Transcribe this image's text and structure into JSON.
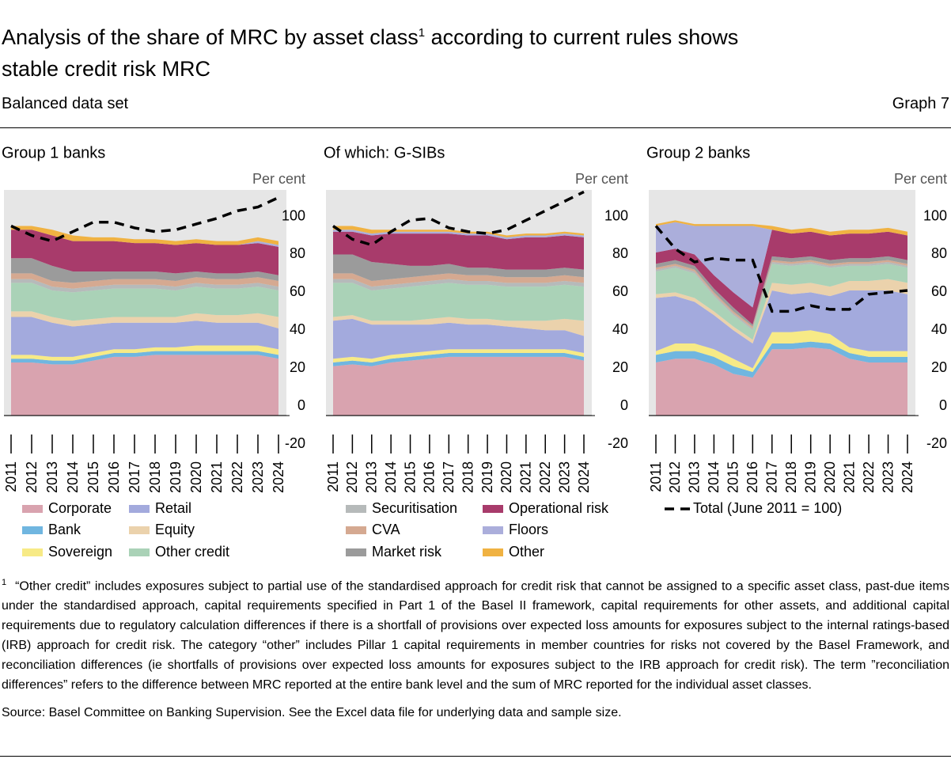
{
  "header": {
    "title": "Analysis of the share of MRC by asset class",
    "title_note": "1",
    "title_end": "according to current rules shows stable credit risk MRC",
    "subtitle": "Balanced data set",
    "graph": "Graph 7"
  },
  "notes": {
    "footnote_mark": "1",
    "footnote": "“Other credit” includes exposures subject to partial use of the standardised approach for credit risk that cannot be assigned to a specific asset class, past-due items under the standardised approach, capital requirements specified in Part 1 of the Basel II framework, capital requirements for other assets, and additional capital requirements due to regulatory calculation differences if there is a shortfall of provisions over expected loss amounts for exposures subject to the internal ratings-based (IRB) approach for credit risk. The category “other” includes Pillar 1 capital requirements in member countries for risks not covered by the Basel Framework, and reconciliation differences (ie shortfalls of provisions over expected loss amounts for exposures subject to the IRB approach for credit risk). The term ”reconciliation differences” refers to the difference between MRC reported at the entire bank level and the sum of MRC reported for the individual asset classes.",
    "source": "Source: Basel Committee on Banking Supervision. See the Excel data file for underlying data and sample size."
  },
  "chart_data": [
    {
      "type": "stacked_area",
      "title": "Group 1 banks",
      "y_unit": "Per cent",
      "categories": [
        "2011",
        "2012",
        "2013",
        "2014",
        "2015",
        "2016",
        "2017",
        "2018",
        "2019",
        "2020",
        "2021",
        "2022",
        "2023",
        "2024"
      ],
      "ylim": [
        -20,
        119
      ],
      "yticks": [
        -20,
        0,
        20,
        40,
        60,
        80,
        100
      ],
      "series": [
        {
          "name": "Corporate",
          "color": "#d9a3af",
          "values": [
            28,
            28,
            27,
            27,
            29,
            31,
            31,
            32,
            32,
            32,
            32,
            32,
            32,
            30
          ]
        },
        {
          "name": "Bank",
          "color": "#70b6e0",
          "values": [
            2,
            2,
            2,
            2,
            2,
            2,
            2,
            2,
            2,
            2,
            2,
            2,
            2,
            2
          ]
        },
        {
          "name": "Sovereign",
          "color": "#f7ea86",
          "values": [
            2,
            2,
            2,
            2,
            2,
            2,
            2,
            2,
            2,
            3,
            3,
            3,
            3,
            3
          ]
        },
        {
          "name": "Retail",
          "color": "#a3aadd",
          "values": [
            20,
            20,
            18,
            16,
            15,
            14,
            14,
            13,
            13,
            13,
            12,
            12,
            12,
            11
          ]
        },
        {
          "name": "Equity",
          "color": "#ebd2ac",
          "values": [
            3,
            3,
            3,
            3,
            3,
            3,
            3,
            3,
            3,
            4,
            4,
            4,
            5,
            6
          ]
        },
        {
          "name": "Other credit",
          "color": "#aad2b7",
          "values": [
            15,
            15,
            14,
            15,
            15,
            15,
            15,
            15,
            14,
            14,
            14,
            14,
            14,
            14
          ]
        },
        {
          "name": "Securitisation",
          "color": "#b6baba",
          "values": [
            2,
            2,
            2,
            2,
            2,
            2,
            2,
            2,
            2,
            2,
            2,
            2,
            2,
            2
          ]
        },
        {
          "name": "CVA",
          "color": "#d5a991",
          "values": [
            3,
            3,
            3,
            3,
            3,
            3,
            3,
            3,
            3,
            3,
            3,
            3,
            3,
            3
          ]
        },
        {
          "name": "Market risk",
          "color": "#9b9b9b",
          "values": [
            8,
            8,
            8,
            6,
            5,
            4,
            4,
            4,
            4,
            3,
            3,
            3,
            3,
            3
          ]
        },
        {
          "name": "Operational risk",
          "color": "#a83b6b",
          "values": [
            15,
            15,
            16,
            16,
            16,
            16,
            15,
            15,
            15,
            15,
            15,
            15,
            15,
            15
          ]
        },
        {
          "name": "Floors",
          "color": "#abaedb",
          "values": [
            0,
            0,
            0,
            0,
            0,
            0,
            0,
            0,
            0,
            0,
            0,
            0,
            1,
            1
          ]
        },
        {
          "name": "Other",
          "color": "#f0b242",
          "values": [
            2,
            2,
            3,
            3,
            2,
            2,
            2,
            2,
            2,
            2,
            2,
            2,
            2,
            2
          ]
        }
      ],
      "total": {
        "name": "Total (June 2011 = 100)",
        "color": "#000000",
        "values": [
          100,
          95,
          92,
          97,
          102,
          102,
          99,
          97,
          98,
          101,
          104,
          108,
          110,
          115
        ]
      }
    },
    {
      "type": "stacked_area",
      "title": "Of which: G-SIBs",
      "y_unit": "Per cent",
      "categories": [
        "2011",
        "2012",
        "2013",
        "2014",
        "2015",
        "2016",
        "2017",
        "2018",
        "2019",
        "2020",
        "2021",
        "2022",
        "2023",
        "2024"
      ],
      "ylim": [
        -20,
        119
      ],
      "yticks": [
        -20,
        0,
        20,
        40,
        60,
        80,
        100
      ],
      "series": [
        {
          "name": "Corporate",
          "color": "#d9a3af",
          "values": [
            26,
            27,
            26,
            28,
            29,
            30,
            31,
            31,
            31,
            31,
            31,
            31,
            31,
            29
          ]
        },
        {
          "name": "Bank",
          "color": "#70b6e0",
          "values": [
            2,
            2,
            2,
            2,
            2,
            2,
            2,
            2,
            2,
            2,
            2,
            2,
            2,
            2
          ]
        },
        {
          "name": "Sovereign",
          "color": "#f7ea86",
          "values": [
            2,
            2,
            2,
            2,
            2,
            2,
            2,
            2,
            2,
            2,
            2,
            2,
            2,
            2
          ]
        },
        {
          "name": "Retail",
          "color": "#a3aadd",
          "values": [
            20,
            20,
            18,
            16,
            15,
            14,
            14,
            13,
            13,
            12,
            11,
            10,
            10,
            9
          ]
        },
        {
          "name": "Equity",
          "color": "#ebd2ac",
          "values": [
            2,
            2,
            2,
            2,
            2,
            3,
            3,
            3,
            3,
            3,
            4,
            5,
            6,
            8
          ]
        },
        {
          "name": "Other credit",
          "color": "#aad2b7",
          "values": [
            18,
            17,
            16,
            17,
            18,
            18,
            18,
            18,
            18,
            18,
            18,
            18,
            18,
            18
          ]
        },
        {
          "name": "Securitisation",
          "color": "#b6baba",
          "values": [
            2,
            2,
            2,
            2,
            2,
            2,
            2,
            2,
            2,
            2,
            2,
            2,
            2,
            2
          ]
        },
        {
          "name": "CVA",
          "color": "#d5a991",
          "values": [
            3,
            3,
            3,
            3,
            3,
            3,
            3,
            3,
            3,
            3,
            3,
            3,
            3,
            3
          ]
        },
        {
          "name": "Market risk",
          "color": "#9b9b9b",
          "values": [
            10,
            10,
            10,
            8,
            6,
            5,
            5,
            4,
            4,
            4,
            4,
            4,
            4,
            4
          ]
        },
        {
          "name": "Operational risk",
          "color": "#a83b6b",
          "values": [
            12,
            12,
            14,
            16,
            17,
            17,
            16,
            17,
            17,
            16,
            17,
            17,
            17,
            17
          ]
        },
        {
          "name": "Floors",
          "color": "#abaedb",
          "values": [
            1,
            1,
            1,
            1,
            1,
            1,
            1,
            1,
            1,
            1,
            1,
            1,
            1,
            1
          ]
        },
        {
          "name": "Other",
          "color": "#f0b242",
          "values": [
            2,
            2,
            2,
            1,
            1,
            1,
            1,
            1,
            1,
            1,
            1,
            1,
            1,
            1
          ]
        }
      ],
      "total": {
        "name": "Total (June 2011 = 100)",
        "color": "#000000",
        "values": [
          100,
          93,
          90,
          97,
          103,
          104,
          99,
          97,
          96,
          98,
          103,
          108,
          113,
          118
        ]
      }
    },
    {
      "type": "stacked_area",
      "title": "Group 2 banks",
      "y_unit": "Per cent",
      "categories": [
        "2011",
        "2012",
        "2013",
        "2014",
        "2015",
        "2016",
        "2017",
        "2018",
        "2019",
        "2020",
        "2021",
        "2022",
        "2023",
        "2024"
      ],
      "ylim": [
        -20,
        119
      ],
      "yticks": [
        -20,
        0,
        20,
        40,
        60,
        80,
        100
      ],
      "series": [
        {
          "name": "Corporate",
          "color": "#d9a3af",
          "values": [
            28,
            30,
            30,
            27,
            22,
            20,
            35,
            35,
            36,
            35,
            30,
            28,
            28,
            28
          ]
        },
        {
          "name": "Bank",
          "color": "#70b6e0",
          "values": [
            4,
            4,
            4,
            4,
            4,
            3,
            3,
            3,
            3,
            3,
            3,
            3,
            3,
            3
          ]
        },
        {
          "name": "Sovereign",
          "color": "#f7ea86",
          "values": [
            2,
            4,
            4,
            4,
            4,
            2,
            6,
            6,
            6,
            5,
            3,
            3,
            3,
            3
          ]
        },
        {
          "name": "Retail",
          "color": "#a3aadd",
          "values": [
            28,
            25,
            22,
            18,
            15,
            13,
            22,
            20,
            20,
            20,
            30,
            32,
            32,
            30
          ]
        },
        {
          "name": "Equity",
          "color": "#ebd2ac",
          "values": [
            2,
            2,
            2,
            2,
            2,
            2,
            4,
            5,
            5,
            5,
            5,
            5,
            6,
            6
          ]
        },
        {
          "name": "Other credit",
          "color": "#aad2b7",
          "values": [
            12,
            13,
            13,
            8,
            6,
            5,
            10,
            10,
            10,
            10,
            8,
            8,
            8,
            8
          ]
        },
        {
          "name": "Securitisation",
          "color": "#b6baba",
          "values": [
            1,
            1,
            1,
            1,
            1,
            1,
            1,
            1,
            1,
            1,
            1,
            1,
            1,
            1
          ]
        },
        {
          "name": "CVA",
          "color": "#d5a991",
          "values": [
            1,
            1,
            1,
            1,
            1,
            1,
            1,
            1,
            1,
            1,
            1,
            1,
            1,
            1
          ]
        },
        {
          "name": "Market risk",
          "color": "#9b9b9b",
          "values": [
            2,
            2,
            2,
            2,
            2,
            1,
            2,
            2,
            2,
            2,
            2,
            2,
            2,
            2
          ]
        },
        {
          "name": "Operational risk",
          "color": "#a83b6b",
          "values": [
            6,
            6,
            6,
            7,
            8,
            9,
            14,
            13,
            13,
            13,
            13,
            13,
            13,
            13
          ]
        },
        {
          "name": "Floors",
          "color": "#abaedb",
          "values": [
            14,
            14,
            15,
            26,
            35,
            43,
            0,
            0,
            0,
            0,
            0,
            0,
            0,
            0
          ]
        },
        {
          "name": "Other",
          "color": "#f0b242",
          "values": [
            1,
            1,
            1,
            1,
            1,
            1,
            2,
            2,
            2,
            2,
            2,
            2,
            2,
            2
          ]
        }
      ],
      "total": {
        "name": "Total (June 2011 = 100)",
        "color": "#000000",
        "values": [
          100,
          88,
          81,
          83,
          82,
          82,
          55,
          55,
          58,
          56,
          56,
          64,
          65,
          66
        ]
      }
    }
  ]
}
